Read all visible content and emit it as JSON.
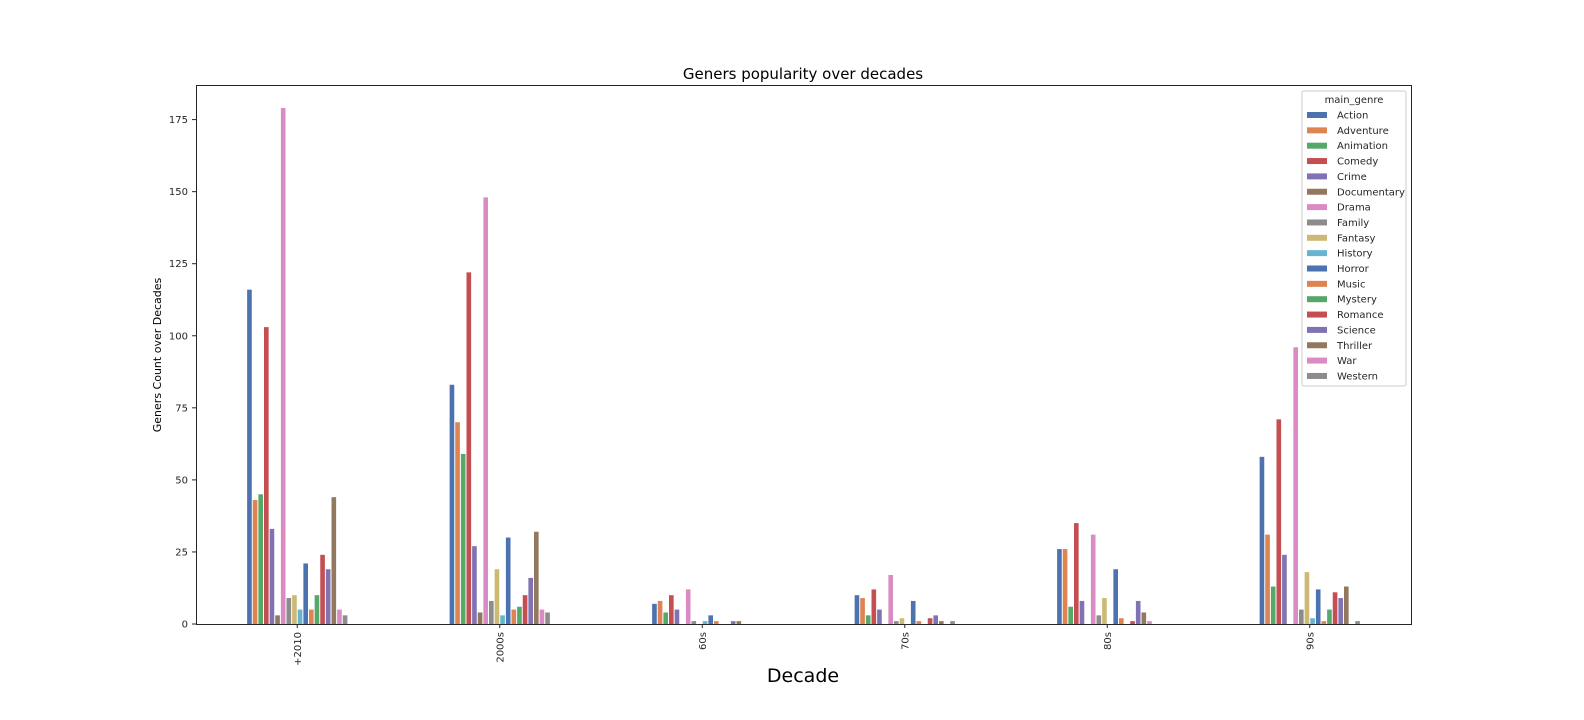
{
  "chart_data": {
    "type": "bar",
    "title": "Geners popularity over decades",
    "xlabel": "Decade",
    "ylabel": "Geners Count over Decades",
    "categories": [
      "+2010",
      "2000s",
      "60s",
      "70s",
      "80s",
      "90s"
    ],
    "ylim": [
      0,
      187
    ],
    "yticks": [
      0,
      25,
      50,
      75,
      100,
      125,
      150,
      175
    ],
    "grid": false,
    "legend": {
      "title": "main_genre",
      "placement": "upper-right"
    },
    "series": [
      {
        "name": "Action",
        "color": "#4c72b0",
        "values": [
          116,
          83,
          7,
          10,
          26,
          58
        ]
      },
      {
        "name": "Adventure",
        "color": "#dd8452",
        "values": [
          43,
          70,
          8,
          9,
          26,
          31
        ]
      },
      {
        "name": "Animation",
        "color": "#55a868",
        "values": [
          45,
          59,
          4,
          3,
          6,
          13
        ]
      },
      {
        "name": "Comedy",
        "color": "#c44e52",
        "values": [
          103,
          122,
          10,
          12,
          35,
          71
        ]
      },
      {
        "name": "Crime",
        "color": "#8172b3",
        "values": [
          33,
          27,
          5,
          5,
          8,
          24
        ]
      },
      {
        "name": "Documentary",
        "color": "#937860",
        "values": [
          3,
          4,
          0,
          0,
          0,
          0
        ]
      },
      {
        "name": "Drama",
        "color": "#da8bc3",
        "values": [
          179,
          148,
          12,
          17,
          31,
          96
        ]
      },
      {
        "name": "Family",
        "color": "#8c8c8c",
        "values": [
          9,
          8,
          1,
          1,
          3,
          5
        ]
      },
      {
        "name": "Fantasy",
        "color": "#ccb974",
        "values": [
          10,
          19,
          0,
          2,
          9,
          18
        ]
      },
      {
        "name": "History",
        "color": "#64b5cd",
        "values": [
          5,
          3,
          1,
          0,
          0,
          2
        ]
      },
      {
        "name": "Horror",
        "color": "#4c72b0",
        "values": [
          21,
          30,
          3,
          8,
          19,
          12
        ]
      },
      {
        "name": "Music",
        "color": "#dd8452",
        "values": [
          5,
          5,
          1,
          1,
          2,
          1
        ]
      },
      {
        "name": "Mystery",
        "color": "#55a868",
        "values": [
          10,
          6,
          0,
          0,
          0,
          5
        ]
      },
      {
        "name": "Romance",
        "color": "#c44e52",
        "values": [
          24,
          10,
          0,
          2,
          1,
          11
        ]
      },
      {
        "name": "Science",
        "color": "#8172b3",
        "values": [
          19,
          16,
          1,
          3,
          8,
          9
        ]
      },
      {
        "name": "Thriller",
        "color": "#937860",
        "values": [
          44,
          32,
          1,
          1,
          4,
          13
        ]
      },
      {
        "name": "War",
        "color": "#da8bc3",
        "values": [
          5,
          5,
          0,
          0,
          1,
          0
        ]
      },
      {
        "name": "Western",
        "color": "#8c8c8c",
        "values": [
          3,
          4,
          0,
          1,
          0,
          1
        ]
      }
    ]
  }
}
